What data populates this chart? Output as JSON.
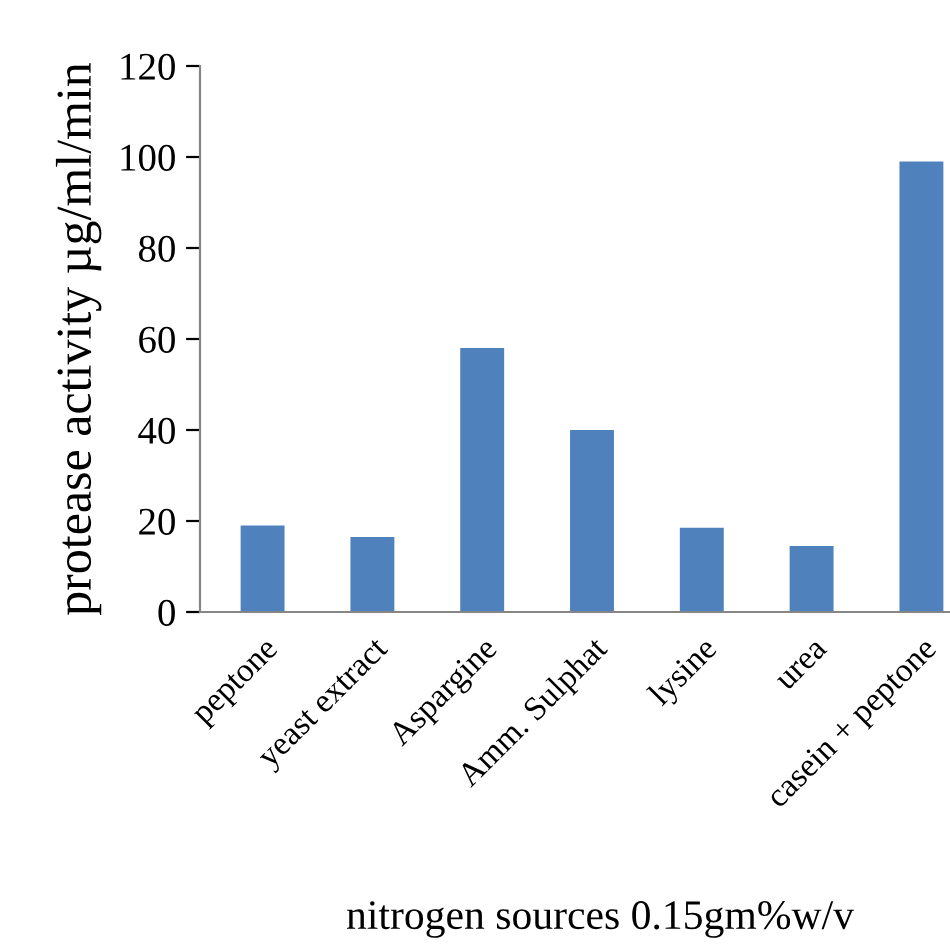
{
  "chart_data": {
    "type": "bar",
    "xlabel": "nitrogen sources 0.15gm%w/v",
    "ylabel": "protease activity µg/ml/min",
    "categories": [
      "peptone",
      "yeast extract",
      "Aspargine",
      "Amm. Sulphat",
      "lysine",
      "urea",
      "casein + peptone"
    ],
    "values": [
      19,
      16.5,
      58,
      40,
      18.5,
      14.5,
      99
    ],
    "color": "#4f81bd",
    "ylim": [
      0,
      120
    ],
    "yticks": [
      0,
      20,
      40,
      60,
      80,
      100,
      120
    ],
    "grid": false,
    "legend": false
  }
}
